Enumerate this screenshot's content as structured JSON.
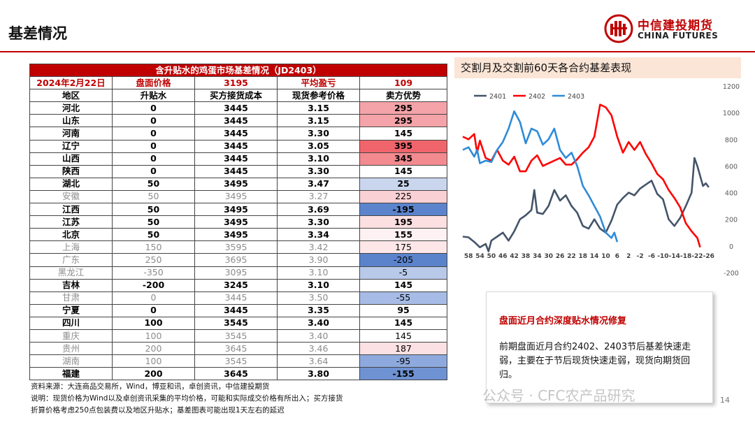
{
  "header": {
    "title": "基差情况",
    "logo_cn": "中信建投期货",
    "logo_en": "CHINA FUTURES"
  },
  "table": {
    "title": "含升贴水的鸡蛋市场基差情况（JD2403）",
    "info": {
      "date": "2024年2月22日",
      "futures_price_label": "盘面价格",
      "futures_price": "3195",
      "avg_profit_label": "平均盈亏",
      "avg_profit": "109"
    },
    "columns": [
      "地区",
      "升贴水",
      "买方接货成本",
      "现货参考价格",
      "卖方优势"
    ],
    "rows": [
      {
        "region": "河北",
        "premium": "0",
        "cost": "3445",
        "spot": "3.15",
        "advantage": "295",
        "style": "strong",
        "color": "#f4a3a8"
      },
      {
        "region": "山东",
        "premium": "0",
        "cost": "3445",
        "spot": "3.15",
        "advantage": "295",
        "style": "strong",
        "color": "#f4a3a8"
      },
      {
        "region": "河南",
        "premium": "0",
        "cost": "3445",
        "spot": "3.30",
        "advantage": "145",
        "style": "strong",
        "color": "#ffffff"
      },
      {
        "region": "辽宁",
        "premium": "0",
        "cost": "3445",
        "spot": "3.05",
        "advantage": "395",
        "style": "strong",
        "color": "#f0656b"
      },
      {
        "region": "山西",
        "premium": "0",
        "cost": "3445",
        "spot": "3.10",
        "advantage": "345",
        "style": "strong",
        "color": "#f28a8f"
      },
      {
        "region": "陕西",
        "premium": "0",
        "cost": "3445",
        "spot": "3.30",
        "advantage": "145",
        "style": "strong",
        "color": "#ffffff"
      },
      {
        "region": "湖北",
        "premium": "50",
        "cost": "3495",
        "spot": "3.47",
        "advantage": "25",
        "style": "strong",
        "color": "#c9d6ee"
      },
      {
        "region": "安徽",
        "premium": "50",
        "cost": "3495",
        "spot": "3.27",
        "advantage": "225",
        "style": "dim",
        "color": "#f9d0d3"
      },
      {
        "region": "江西",
        "premium": "50",
        "cost": "3495",
        "spot": "3.69",
        "advantage": "-195",
        "style": "strong",
        "color": "#5b84cc"
      },
      {
        "region": "江苏",
        "premium": "50",
        "cost": "3495",
        "spot": "3.30",
        "advantage": "195",
        "style": "strong",
        "color": "#fbdfe1"
      },
      {
        "region": "北京",
        "premium": "50",
        "cost": "3495",
        "spot": "3.34",
        "advantage": "155",
        "style": "strong",
        "color": "#fdf1f2"
      },
      {
        "region": "上海",
        "premium": "150",
        "cost": "3595",
        "spot": "3.42",
        "advantage": "175",
        "style": "dim",
        "color": "#fce6e8"
      },
      {
        "region": "广东",
        "premium": "250",
        "cost": "3695",
        "spot": "3.90",
        "advantage": "-205",
        "style": "dim",
        "color": "#5a83cc"
      },
      {
        "region": "黑龙江",
        "premium": "-350",
        "cost": "3095",
        "spot": "3.10",
        "advantage": "-5",
        "style": "dim",
        "color": "#b8c9ea"
      },
      {
        "region": "吉林",
        "premium": "-200",
        "cost": "3245",
        "spot": "3.10",
        "advantage": "145",
        "style": "strong",
        "color": "#ffffff"
      },
      {
        "region": "甘肃",
        "premium": "0",
        "cost": "3445",
        "spot": "3.50",
        "advantage": "-55",
        "style": "dim",
        "color": "#a6bce6"
      },
      {
        "region": "宁夏",
        "premium": "0",
        "cost": "3445",
        "spot": "3.35",
        "advantage": "95",
        "style": "strong",
        "color": "#ffffff"
      },
      {
        "region": "四川",
        "premium": "100",
        "cost": "3545",
        "spot": "3.40",
        "advantage": "145",
        "style": "strong",
        "color": "#ffffff"
      },
      {
        "region": "重庆",
        "premium": "100",
        "cost": "3545",
        "spot": "3.40",
        "advantage": "145",
        "style": "dim",
        "color": "#ffffff"
      },
      {
        "region": "贵州",
        "premium": "200",
        "cost": "3645",
        "spot": "3.46",
        "advantage": "187",
        "style": "dim",
        "color": "#fbe1e3"
      },
      {
        "region": "湖南",
        "premium": "100",
        "cost": "3545",
        "spot": "3.64",
        "advantage": "-95",
        "style": "dim",
        "color": "#8ea9dd"
      },
      {
        "region": "福建",
        "premium": "200",
        "cost": "3645",
        "spot": "3.80",
        "advantage": "-155",
        "style": "strong",
        "color": "#6e92d2"
      }
    ]
  },
  "chart_data": {
    "type": "line",
    "title": "交割月及交割前60天各合约基差表现",
    "x_tick_labels": [
      "58",
      "54",
      "50",
      "46",
      "42",
      "38",
      "34",
      "30",
      "26",
      "22",
      "18",
      "14",
      "10",
      "6",
      "2",
      "-2",
      "-6",
      "-10",
      "-14",
      "-18",
      "-22",
      "-26"
    ],
    "x_range": [
      60,
      -28
    ],
    "ylim": [
      -200,
      1200
    ],
    "y_ticks": [
      -200,
      0,
      200,
      400,
      600,
      800,
      1000,
      1200
    ],
    "legend_position": "top-left",
    "series": [
      {
        "name": "2401",
        "color": "#44546a",
        "x": [
          60,
          58,
          56,
          54,
          52,
          51,
          50,
          48,
          46,
          44,
          42,
          40,
          38,
          36,
          35,
          34,
          32,
          30,
          28,
          26,
          24,
          22,
          20,
          18,
          16,
          14,
          12,
          10,
          8,
          6,
          4,
          2,
          0,
          -2,
          -4,
          -6,
          -8,
          -10,
          -12,
          -14,
          -16,
          -18,
          -20,
          -21,
          -22,
          -24,
          -25,
          -26
        ],
        "values": [
          70,
          65,
          30,
          -10,
          15,
          -40,
          40,
          70,
          100,
          40,
          110,
          200,
          230,
          270,
          420,
          250,
          240,
          300,
          420,
          340,
          380,
          300,
          250,
          150,
          130,
          200,
          130,
          100,
          190,
          310,
          360,
          400,
          380,
          430,
          460,
          490,
          390,
          350,
          200,
          150,
          210,
          300,
          400,
          660,
          600,
          450,
          470,
          440
        ]
      },
      {
        "name": "2402",
        "color": "#ff0000",
        "x": [
          60,
          58,
          56,
          55,
          54,
          52,
          50,
          48,
          46,
          44,
          42,
          40,
          38,
          36,
          34,
          32,
          30,
          28,
          26,
          24,
          22,
          20,
          18,
          16,
          14,
          12,
          10,
          8,
          6,
          4,
          2,
          0,
          -2,
          -4,
          -6,
          -8,
          -10,
          -12,
          -14,
          -16,
          -18,
          -20,
          -22,
          -23
        ],
        "values": [
          820,
          800,
          840,
          700,
          790,
          660,
          640,
          720,
          640,
          610,
          670,
          560,
          560,
          640,
          680,
          600,
          620,
          640,
          660,
          610,
          610,
          650,
          700,
          740,
          820,
          1060,
          1040,
          980,
          820,
          700,
          780,
          720,
          780,
          690,
          620,
          540,
          500,
          420,
          360,
          290,
          170,
          110,
          60,
          -10
        ]
      },
      {
        "name": "2403",
        "color": "#2e8bd8",
        "x": [
          60,
          58,
          56,
          55,
          54,
          52,
          50,
          48,
          46,
          44,
          42,
          40,
          38,
          36,
          34,
          32,
          30,
          28,
          26,
          24,
          22,
          20,
          18,
          16,
          14,
          12,
          10,
          8,
          7,
          6
        ],
        "values": [
          720,
          740,
          670,
          720,
          620,
          640,
          630,
          720,
          780,
          880,
          1010,
          930,
          770,
          880,
          860,
          760,
          800,
          880,
          720,
          660,
          700,
          600,
          450,
          380,
          300,
          220,
          100,
          60,
          100,
          30
        ]
      }
    ]
  },
  "note": {
    "headline": "盘面近月合约深度贴水情况修复",
    "body": "前期盘面近月合约2402、2403节后基差快速走弱，主要在于节后现货快速走弱，现货向期货回归。"
  },
  "footer": {
    "source": "资料来源：大连商品交易所，Wind，博亚和讯，卓创资讯，中信建投期货",
    "note1": "说明：现货价格为Wind以及卓创资讯采集的平均价格，可能和实际成交价格有所出入；买方接货",
    "note2": "折算价格考虑250点包装费以及地区升贴水；基差图表可能出现1天左右的延迟",
    "watermark": "公众号 · CFC农产品研究",
    "page_number": "14"
  }
}
